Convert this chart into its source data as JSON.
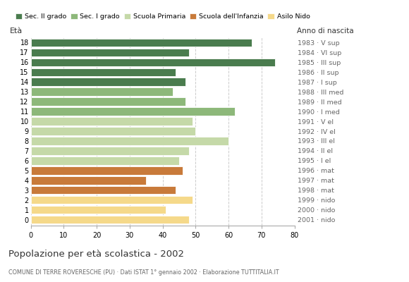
{
  "ages": [
    18,
    17,
    16,
    15,
    14,
    13,
    12,
    11,
    10,
    9,
    8,
    7,
    6,
    5,
    4,
    3,
    2,
    1,
    0
  ],
  "values": [
    67,
    48,
    74,
    44,
    47,
    43,
    47,
    62,
    49,
    50,
    60,
    48,
    45,
    46,
    35,
    44,
    49,
    41,
    48
  ],
  "categories": [
    "Sec. II grado",
    "Sec. I grado",
    "Scuola Primaria",
    "Scuola dell'Infanzia",
    "Asilo Nido"
  ],
  "colors": {
    "Sec. II grado": "#4a7c4e",
    "Sec. I grado": "#8db87a",
    "Scuola Primaria": "#c5d9a8",
    "Scuola dell'Infanzia": "#c87a3a",
    "Asilo Nido": "#f5d98a"
  },
  "bar_colors": [
    "#4a7c4e",
    "#4a7c4e",
    "#4a7c4e",
    "#4a7c4e",
    "#4a7c4e",
    "#8db87a",
    "#8db87a",
    "#8db87a",
    "#c5d9a8",
    "#c5d9a8",
    "#c5d9a8",
    "#c5d9a8",
    "#c5d9a8",
    "#c87a3a",
    "#c87a3a",
    "#c87a3a",
    "#f5d98a",
    "#f5d98a",
    "#f5d98a"
  ],
  "right_labels": [
    "1983 · V sup",
    "1984 · VI sup",
    "1985 · III sup",
    "1986 · II sup",
    "1987 · I sup",
    "1988 · III med",
    "1989 · II med",
    "1990 · I med",
    "1991 · V el",
    "1992 · IV el",
    "1993 · III el",
    "1994 · II el",
    "1995 · I el",
    "1996 · mat",
    "1997 · mat",
    "1998 · mat",
    "1999 · nido",
    "2000 · nido",
    "2001 · nido"
  ],
  "anno_label": "Anno di nascita",
  "eta_label": "Età",
  "title": "Popolazione per età scolastica - 2002",
  "subtitle": "COMUNE DI TERRE ROVERESCHE (PU) · Dati ISTAT 1° gennaio 2002 · Elaborazione TUTTITALIA.IT",
  "xlim": [
    0,
    80
  ],
  "xticks": [
    0,
    10,
    20,
    30,
    40,
    50,
    60,
    70,
    80
  ],
  "background_color": "#ffffff",
  "grid_color": "#cccccc"
}
